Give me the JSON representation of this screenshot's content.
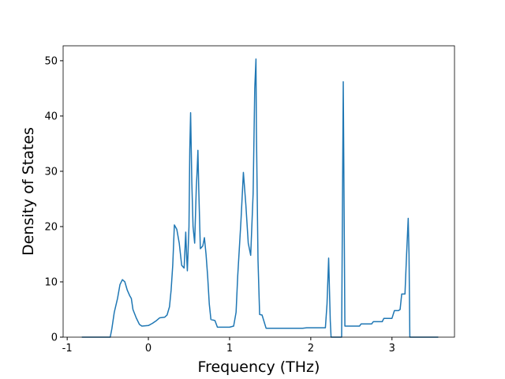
{
  "chart_data": {
    "type": "line",
    "xlabel": "Frequency (THz)",
    "ylabel": "Density of States",
    "xlim": [
      -1.05,
      3.77
    ],
    "ylim": [
      0,
      52.7
    ],
    "xticks": [
      -1,
      0,
      1,
      2,
      3
    ],
    "yticks": [
      0,
      10,
      20,
      30,
      40,
      50
    ],
    "color": "#1f77b4",
    "grid": false,
    "x": [
      -0.82,
      -0.47,
      -0.45,
      -0.42,
      -0.38,
      -0.35,
      -0.32,
      -0.29,
      -0.26,
      -0.23,
      -0.21,
      -0.19,
      -0.15,
      -0.11,
      -0.08,
      0.0,
      0.05,
      0.1,
      0.14,
      0.2,
      0.23,
      0.26,
      0.28,
      0.3,
      0.32,
      0.35,
      0.38,
      0.41,
      0.44,
      0.46,
      0.47,
      0.48,
      0.5,
      0.51,
      0.52,
      0.535,
      0.55,
      0.57,
      0.59,
      0.6,
      0.61,
      0.62,
      0.64,
      0.67,
      0.69,
      0.71,
      0.73,
      0.75,
      0.77,
      0.82,
      0.85,
      0.9,
      1.0,
      1.05,
      1.08,
      1.1,
      1.14,
      1.17,
      1.2,
      1.23,
      1.26,
      1.29,
      1.31,
      1.325,
      1.33,
      1.35,
      1.37,
      1.4,
      1.45,
      1.5,
      1.9,
      1.95,
      2.0,
      2.18,
      2.2,
      2.22,
      2.24,
      2.25,
      2.38,
      2.4,
      2.42,
      2.6,
      2.62,
      2.75,
      2.77,
      2.88,
      2.9,
      3.0,
      3.03,
      3.08,
      3.1,
      3.12,
      3.16,
      3.18,
      3.2,
      3.21,
      3.22,
      3.57
    ],
    "values": [
      0,
      0,
      1.5,
      4.5,
      7,
      9.5,
      10.4,
      10,
      8.5,
      7.5,
      7,
      5,
      3.5,
      2.3,
      2,
      2.1,
      2.5,
      3,
      3.5,
      3.6,
      4,
      5.5,
      8.5,
      13,
      20.3,
      19.5,
      17,
      13,
      12.5,
      19,
      15,
      12,
      20,
      34,
      40.6,
      28,
      20,
      17,
      27,
      30,
      33.8,
      27,
      16,
      16.5,
      18,
      15,
      11,
      6,
      3.2,
      3,
      1.8,
      1.8,
      1.8,
      2,
      4.5,
      11,
      21,
      29.8,
      24,
      17,
      14.8,
      26,
      45,
      50.3,
      38,
      14,
      4.1,
      4,
      1.6,
      1.6,
      1.6,
      1.7,
      1.7,
      1.7,
      6,
      14.3,
      3,
      0,
      0,
      46.2,
      2,
      2,
      2.4,
      2.4,
      2.8,
      2.8,
      3.4,
      3.4,
      4.8,
      4.8,
      5,
      7.8,
      7.8,
      15,
      21.5,
      15,
      0,
      0
    ]
  }
}
